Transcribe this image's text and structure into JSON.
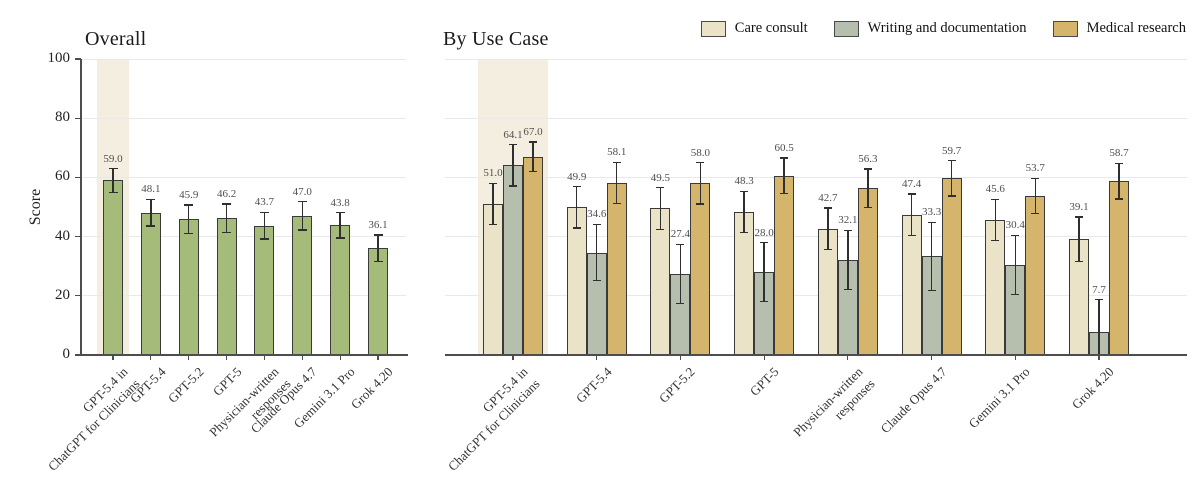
{
  "figure": {
    "background": "#ffffff",
    "ylabel": "Score",
    "yticks": [
      0,
      20,
      40,
      60,
      80,
      100
    ],
    "axis_color": "#4d4d4d",
    "grid_color": "#e9e9e9",
    "highlight_color": "#f4eee1",
    "legend": [
      {
        "label": "Care consult",
        "color": "#ebe3c8"
      },
      {
        "label": "Writing and documentation",
        "color": "#b6bfae"
      },
      {
        "label": "Medical research",
        "color": "#d4b56b"
      }
    ]
  },
  "chart_data": [
    {
      "type": "bar",
      "title": "Overall",
      "ylabel": "Score",
      "ylim": [
        0,
        100
      ],
      "grid": true,
      "legend_position": "none",
      "highlight_index": 0,
      "bar_color": "#a4bb7a",
      "categories": [
        "GPT-5.4 in\nChatGPT for Clinicians",
        "GPT-5.4",
        "GPT-5.2",
        "GPT-5",
        "Physician-written\nresponses",
        "Claude Opus 4.7",
        "Gemini 3.1 Pro",
        "Grok 4.20"
      ],
      "values": [
        59.0,
        48.1,
        45.9,
        46.2,
        43.7,
        47.0,
        43.8,
        36.1
      ],
      "errors": [
        4.0,
        4.5,
        4.8,
        4.8,
        4.5,
        4.8,
        4.3,
        4.5
      ]
    },
    {
      "type": "bar",
      "title": "By Use Case",
      "ylim": [
        0,
        100
      ],
      "grid": true,
      "legend_position": "top-right",
      "highlight_index": 0,
      "categories": [
        "GPT-5.4 in\nChatGPT for Clinicians",
        "GPT-5.4",
        "GPT-5.2",
        "GPT-5",
        "Physician-written\nresponses",
        "Claude Opus 4.7",
        "Gemini 3.1 Pro",
        "Grok 4.20"
      ],
      "series": [
        {
          "name": "Care consult",
          "color": "#ebe3c8",
          "values": [
            51.0,
            49.9,
            49.5,
            48.3,
            42.7,
            47.4,
            45.6,
            39.1
          ],
          "errors": [
            7.0,
            7.0,
            7.0,
            7.0,
            7.0,
            7.0,
            7.0,
            7.5
          ]
        },
        {
          "name": "Writing and documentation",
          "color": "#b6bfae",
          "values": [
            64.1,
            34.6,
            27.4,
            28.0,
            32.1,
            33.3,
            30.4,
            7.7
          ],
          "errors": [
            7.0,
            9.5,
            10.0,
            10.0,
            10.0,
            11.5,
            10.0,
            11.0
          ]
        },
        {
          "name": "Medical research",
          "color": "#d4b56b",
          "values": [
            67.0,
            58.1,
            58.0,
            60.5,
            56.3,
            59.7,
            53.7,
            58.7
          ],
          "errors": [
            5.0,
            7.0,
            7.0,
            6.0,
            6.5,
            6.0,
            6.0,
            6.0
          ]
        }
      ]
    }
  ]
}
